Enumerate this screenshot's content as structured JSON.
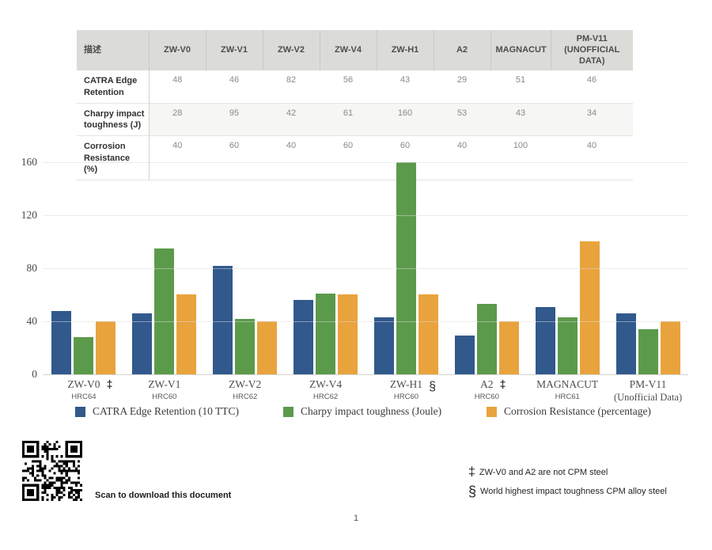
{
  "table": {
    "description_header": "描述",
    "columns": [
      "ZW-V0",
      "ZW-V1",
      "ZW-V2",
      "ZW-V4",
      "ZW-H1",
      "A2",
      "MAGNACUT",
      "PM-V11\n(UNOFFICIAL DATA)"
    ],
    "rows": [
      {
        "label": "CATRA Edge Retention",
        "values": [
          "48",
          "46",
          "82",
          "56",
          "43",
          "29",
          "51",
          "46"
        ]
      },
      {
        "label": "Charpy impact toughness (J)",
        "values": [
          "28",
          "95",
          "42",
          "61",
          "160",
          "53",
          "43",
          "34"
        ]
      },
      {
        "label": "Corrosion Resistance (%)",
        "values": [
          "40",
          "60",
          "40",
          "60",
          "60",
          "40",
          "100",
          "40"
        ]
      }
    ]
  },
  "chart_data": {
    "type": "bar",
    "title": "",
    "categories": [
      "ZW-V0",
      "ZW-V1",
      "ZW-V2",
      "ZW-V4",
      "ZW-H1",
      "A2",
      "MAGNACUT",
      "PM-V11"
    ],
    "category_marks": [
      "‡",
      "",
      "",
      "",
      "§",
      "‡",
      "",
      ""
    ],
    "category_sublabels": [
      "HRC64",
      "HRC60",
      "HRC62",
      "HRC62",
      "HRC60",
      "HRC60",
      "HRC61",
      "(Unofficial Data)"
    ],
    "series": [
      {
        "name": "CATRA Edge Retention (10 TTC)",
        "color": "#31598C",
        "values": [
          48,
          46,
          82,
          56,
          43,
          29,
          51,
          46
        ]
      },
      {
        "name": "Charpy impact toughness (Joule)",
        "color": "#5C9A4B",
        "values": [
          28,
          95,
          42,
          61,
          160,
          53,
          43,
          34
        ]
      },
      {
        "name": "Corrosion Resistance (percentage)",
        "color": "#E9A33D",
        "values": [
          40,
          60,
          40,
          60,
          60,
          40,
          100,
          40
        ]
      }
    ],
    "ylim": [
      0,
      160
    ],
    "yticks": [
      0,
      40,
      80,
      120,
      160
    ],
    "grid": "horizontal-dotted",
    "legend_position": "bottom",
    "grid_color": "#D9D9D9"
  },
  "footnotes": [
    {
      "symbol": "‡",
      "text": "ZW-V0 and A2 are not CPM steel"
    },
    {
      "symbol": "§",
      "text": "World highest impact toughness CPM alloy steel"
    }
  ],
  "qr": {
    "caption": "Scan to download this document"
  },
  "page_number": "1"
}
